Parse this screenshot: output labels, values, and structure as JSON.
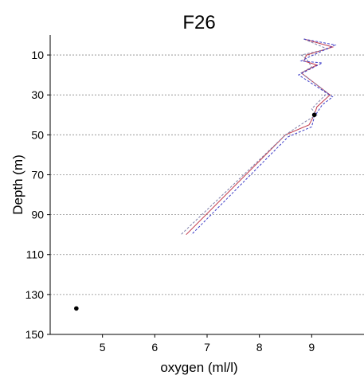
{
  "chart_data": {
    "type": "line",
    "title": "F26",
    "xlabel": "oxygen (ml/l)",
    "ylabel": "Depth (m)",
    "xlim": [
      4.0,
      10.0
    ],
    "ylim": [
      150,
      0
    ],
    "y_reversed": true,
    "grid": "horizontal dashed",
    "x_ticks": [
      "5",
      "6",
      "7",
      "8",
      "9"
    ],
    "y_ticks": [
      "10",
      "30",
      "50",
      "70",
      "90",
      "110",
      "130",
      "150"
    ],
    "series": [
      {
        "style": "solid",
        "color": "#c0394b",
        "x": [
          8.85,
          9.4,
          8.9,
          8.85,
          9.1,
          8.8,
          9.35,
          9.1,
          9.05,
          8.95,
          8.5,
          6.6
        ],
        "y": [
          2,
          6,
          10,
          13,
          15,
          19,
          30,
          36,
          40,
          45,
          50,
          100
        ]
      },
      {
        "style": "dashed",
        "color": "#7f7faa",
        "x": [
          8.85,
          9.3,
          8.8,
          8.9,
          9.0,
          8.8,
          9.3,
          9.0,
          9.1,
          8.9,
          8.5,
          6.5
        ],
        "y": [
          2,
          7,
          10,
          12,
          16,
          19,
          29,
          37,
          40,
          43,
          50,
          100
        ]
      },
      {
        "style": "dashed",
        "color": "#3c3cc8",
        "x": [
          8.85,
          9.45,
          8.95,
          8.8,
          9.2,
          8.75,
          9.4,
          9.2,
          9.05,
          9.0,
          8.55,
          6.7
        ],
        "y": [
          2,
          5,
          11,
          13,
          14,
          20,
          31,
          35,
          41,
          46,
          51,
          100
        ]
      }
    ],
    "points": [
      {
        "x": 9.05,
        "y": 40
      },
      {
        "x": 4.5,
        "y": 137
      }
    ]
  }
}
